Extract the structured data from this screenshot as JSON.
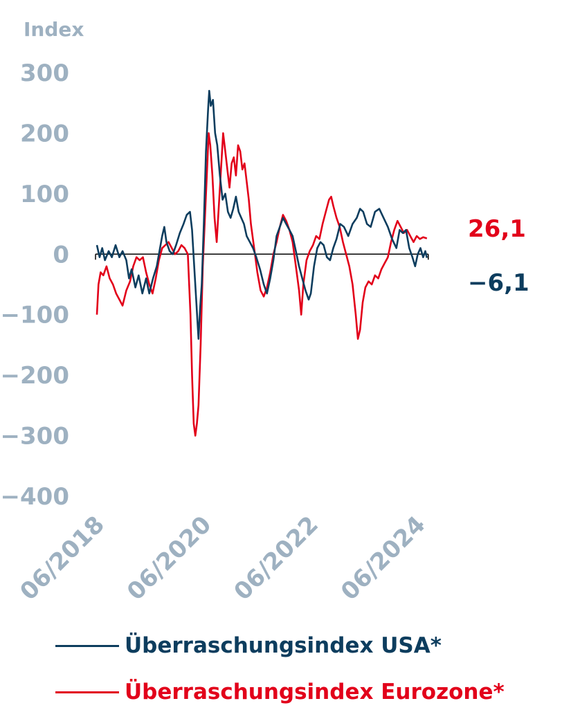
{
  "chart_data": {
    "type": "line",
    "ylabel": "Index",
    "ylim": [
      -400,
      300
    ],
    "yticks": [
      300,
      200,
      100,
      0,
      -100,
      -200,
      -300,
      -400
    ],
    "ytick_labels": [
      "300",
      "200",
      "100",
      "0",
      "−100",
      "−200",
      "−300",
      "−400"
    ],
    "xlim": [
      2018.0,
      2024.6
    ],
    "xticks": [
      {
        "value": 2018.42,
        "label": "06/2018"
      },
      {
        "value": 2020.42,
        "label": "06/2020"
      },
      {
        "value": 2022.42,
        "label": "06/2022"
      },
      {
        "value": 2024.42,
        "label": "06/2024"
      }
    ],
    "series": [
      {
        "name": "Überraschungsindex USA*",
        "color": "#0d3d5e",
        "end_label": "−6,1",
        "points": [
          [
            2018.0,
            15
          ],
          [
            2018.05,
            -5
          ],
          [
            2018.1,
            10
          ],
          [
            2018.15,
            -10
          ],
          [
            2018.22,
            5
          ],
          [
            2018.28,
            -5
          ],
          [
            2018.35,
            15
          ],
          [
            2018.42,
            -5
          ],
          [
            2018.48,
            5
          ],
          [
            2018.55,
            -10
          ],
          [
            2018.6,
            -40
          ],
          [
            2018.65,
            -25
          ],
          [
            2018.72,
            -55
          ],
          [
            2018.78,
            -35
          ],
          [
            2018.85,
            -65
          ],
          [
            2018.92,
            -40
          ],
          [
            2018.98,
            -65
          ],
          [
            2019.05,
            -40
          ],
          [
            2019.12,
            -20
          ],
          [
            2019.18,
            10
          ],
          [
            2019.22,
            30
          ],
          [
            2019.26,
            45
          ],
          [
            2019.3,
            20
          ],
          [
            2019.36,
            5
          ],
          [
            2019.42,
            0
          ],
          [
            2019.48,
            15
          ],
          [
            2019.55,
            35
          ],
          [
            2019.62,
            50
          ],
          [
            2019.68,
            65
          ],
          [
            2019.74,
            70
          ],
          [
            2019.78,
            40
          ],
          [
            2019.82,
            -20
          ],
          [
            2019.86,
            -80
          ],
          [
            2019.9,
            -140
          ],
          [
            2019.93,
            -90
          ],
          [
            2019.96,
            -50
          ],
          [
            2020.0,
            50
          ],
          [
            2020.04,
            170
          ],
          [
            2020.08,
            240
          ],
          [
            2020.1,
            270
          ],
          [
            2020.13,
            245
          ],
          [
            2020.17,
            255
          ],
          [
            2020.21,
            200
          ],
          [
            2020.25,
            180
          ],
          [
            2020.3,
            130
          ],
          [
            2020.35,
            90
          ],
          [
            2020.4,
            100
          ],
          [
            2020.45,
            70
          ],
          [
            2020.5,
            60
          ],
          [
            2020.55,
            75
          ],
          [
            2020.6,
            95
          ],
          [
            2020.65,
            70
          ],
          [
            2020.7,
            60
          ],
          [
            2020.75,
            50
          ],
          [
            2020.8,
            30
          ],
          [
            2020.86,
            20
          ],
          [
            2020.92,
            10
          ],
          [
            2020.98,
            -5
          ],
          [
            2021.05,
            -25
          ],
          [
            2021.12,
            -50
          ],
          [
            2021.18,
            -65
          ],
          [
            2021.24,
            -40
          ],
          [
            2021.3,
            -10
          ],
          [
            2021.36,
            30
          ],
          [
            2021.42,
            45
          ],
          [
            2021.48,
            60
          ],
          [
            2021.54,
            50
          ],
          [
            2021.6,
            40
          ],
          [
            2021.66,
            30
          ],
          [
            2021.72,
            5
          ],
          [
            2021.78,
            -20
          ],
          [
            2021.84,
            -40
          ],
          [
            2021.9,
            -60
          ],
          [
            2021.96,
            -75
          ],
          [
            2022.0,
            -65
          ],
          [
            2022.06,
            -20
          ],
          [
            2022.12,
            10
          ],
          [
            2022.18,
            20
          ],
          [
            2022.24,
            15
          ],
          [
            2022.3,
            -5
          ],
          [
            2022.36,
            -10
          ],
          [
            2022.42,
            10
          ],
          [
            2022.48,
            25
          ],
          [
            2022.55,
            50
          ],
          [
            2022.62,
            45
          ],
          [
            2022.7,
            30
          ],
          [
            2022.78,
            50
          ],
          [
            2022.86,
            60
          ],
          [
            2022.92,
            75
          ],
          [
            2022.98,
            70
          ],
          [
            2023.05,
            50
          ],
          [
            2023.12,
            45
          ],
          [
            2023.2,
            70
          ],
          [
            2023.28,
            75
          ],
          [
            2023.36,
            60
          ],
          [
            2023.44,
            45
          ],
          [
            2023.52,
            25
          ],
          [
            2023.6,
            10
          ],
          [
            2023.66,
            40
          ],
          [
            2023.72,
            35
          ],
          [
            2023.78,
            40
          ],
          [
            2023.84,
            10
          ],
          [
            2023.9,
            -5
          ],
          [
            2023.95,
            -20
          ],
          [
            2024.0,
            0
          ],
          [
            2024.05,
            10
          ],
          [
            2024.1,
            -5
          ],
          [
            2024.14,
            5
          ],
          [
            2024.17,
            -6.1
          ]
        ]
      },
      {
        "name": "Überraschungsindex Eurozone*",
        "color": "#e2001a",
        "end_label": "26,1",
        "points": [
          [
            2018.0,
            -100
          ],
          [
            2018.03,
            -50
          ],
          [
            2018.07,
            -30
          ],
          [
            2018.12,
            -35
          ],
          [
            2018.18,
            -20
          ],
          [
            2018.24,
            -40
          ],
          [
            2018.3,
            -50
          ],
          [
            2018.36,
            -65
          ],
          [
            2018.42,
            -75
          ],
          [
            2018.48,
            -85
          ],
          [
            2018.55,
            -60
          ],
          [
            2018.62,
            -45
          ],
          [
            2018.68,
            -20
          ],
          [
            2018.74,
            -5
          ],
          [
            2018.8,
            -10
          ],
          [
            2018.86,
            -5
          ],
          [
            2018.92,
            -30
          ],
          [
            2018.98,
            -50
          ],
          [
            2019.04,
            -65
          ],
          [
            2019.1,
            -40
          ],
          [
            2019.16,
            -10
          ],
          [
            2019.22,
            10
          ],
          [
            2019.28,
            15
          ],
          [
            2019.34,
            20
          ],
          [
            2019.4,
            10
          ],
          [
            2019.46,
            0
          ],
          [
            2019.52,
            5
          ],
          [
            2019.58,
            15
          ],
          [
            2019.64,
            10
          ],
          [
            2019.7,
            0
          ],
          [
            2019.75,
            -100
          ],
          [
            2019.78,
            -200
          ],
          [
            2019.81,
            -280
          ],
          [
            2019.84,
            -300
          ],
          [
            2019.87,
            -280
          ],
          [
            2019.9,
            -250
          ],
          [
            2019.94,
            -150
          ],
          [
            2019.98,
            -20
          ],
          [
            2020.02,
            60
          ],
          [
            2020.06,
            140
          ],
          [
            2020.09,
            200
          ],
          [
            2020.12,
            180
          ],
          [
            2020.16,
            130
          ],
          [
            2020.2,
            60
          ],
          [
            2020.24,
            20
          ],
          [
            2020.28,
            80
          ],
          [
            2020.32,
            140
          ],
          [
            2020.36,
            200
          ],
          [
            2020.4,
            170
          ],
          [
            2020.44,
            140
          ],
          [
            2020.48,
            110
          ],
          [
            2020.52,
            150
          ],
          [
            2020.56,
            160
          ],
          [
            2020.6,
            130
          ],
          [
            2020.64,
            180
          ],
          [
            2020.68,
            170
          ],
          [
            2020.72,
            140
          ],
          [
            2020.76,
            150
          ],
          [
            2020.8,
            120
          ],
          [
            2020.84,
            90
          ],
          [
            2020.88,
            50
          ],
          [
            2020.94,
            10
          ],
          [
            2021.0,
            -30
          ],
          [
            2021.06,
            -60
          ],
          [
            2021.12,
            -70
          ],
          [
            2021.18,
            -55
          ],
          [
            2021.24,
            -30
          ],
          [
            2021.3,
            0
          ],
          [
            2021.36,
            20
          ],
          [
            2021.42,
            45
          ],
          [
            2021.48,
            65
          ],
          [
            2021.54,
            55
          ],
          [
            2021.6,
            40
          ],
          [
            2021.66,
            20
          ],
          [
            2021.72,
            -20
          ],
          [
            2021.78,
            -60
          ],
          [
            2021.82,
            -100
          ],
          [
            2021.86,
            -50
          ],
          [
            2021.92,
            -10
          ],
          [
            2021.98,
            5
          ],
          [
            2022.04,
            15
          ],
          [
            2022.1,
            30
          ],
          [
            2022.16,
            25
          ],
          [
            2022.22,
            50
          ],
          [
            2022.28,
            70
          ],
          [
            2022.34,
            90
          ],
          [
            2022.38,
            95
          ],
          [
            2022.42,
            80
          ],
          [
            2022.48,
            60
          ],
          [
            2022.54,
            45
          ],
          [
            2022.6,
            20
          ],
          [
            2022.66,
            0
          ],
          [
            2022.72,
            -20
          ],
          [
            2022.78,
            -50
          ],
          [
            2022.84,
            -100
          ],
          [
            2022.88,
            -140
          ],
          [
            2022.92,
            -125
          ],
          [
            2022.97,
            -80
          ],
          [
            2023.02,
            -55
          ],
          [
            2023.08,
            -45
          ],
          [
            2023.14,
            -50
          ],
          [
            2023.2,
            -35
          ],
          [
            2023.26,
            -40
          ],
          [
            2023.32,
            -25
          ],
          [
            2023.38,
            -15
          ],
          [
            2023.44,
            -5
          ],
          [
            2023.5,
            20
          ],
          [
            2023.56,
            40
          ],
          [
            2023.62,
            55
          ],
          [
            2023.68,
            45
          ],
          [
            2023.74,
            35
          ],
          [
            2023.8,
            40
          ],
          [
            2023.86,
            30
          ],
          [
            2023.92,
            20
          ],
          [
            2023.98,
            30
          ],
          [
            2024.04,
            25
          ],
          [
            2024.1,
            28
          ],
          [
            2024.17,
            26.1
          ]
        ]
      }
    ]
  }
}
